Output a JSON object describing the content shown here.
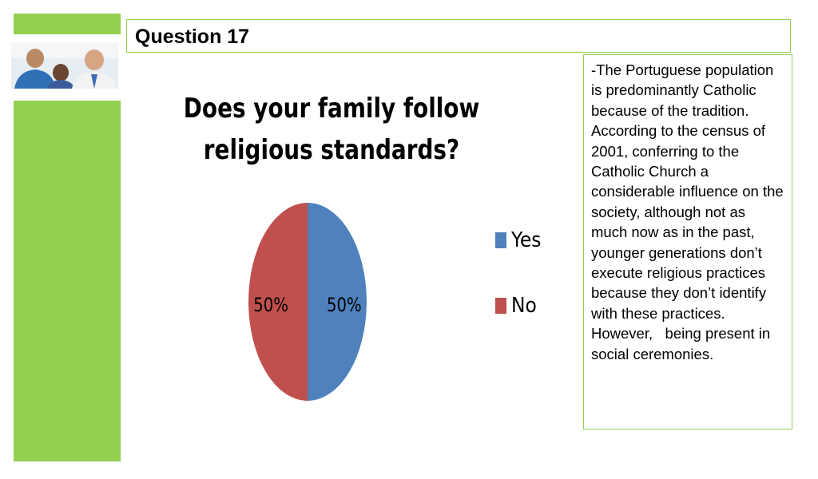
{
  "header": {
    "title": "Question 17"
  },
  "notes": {
    "text": "-The Portuguese population is predominantly Catholic because of the tradition. According to the census of 2001, conferring to the Catholic Church a considerable influence on the\nsociety, although not as much now as in the past, younger generations don’t execute religious practices because they don’t identify with these practices.\nHowever,   being present in social ceremonies."
  },
  "colors": {
    "accent": "#92d050",
    "yes": "#4f81bd",
    "no": "#c0504d"
  },
  "chart_data": {
    "type": "pie",
    "title": "Does your family follow religious standards?",
    "categories": [
      "Yes",
      "No"
    ],
    "values": [
      50,
      50
    ],
    "data_labels": [
      "50%",
      "50%"
    ],
    "colors": [
      "#4f81bd",
      "#c0504d"
    ],
    "legend_position": "right"
  }
}
